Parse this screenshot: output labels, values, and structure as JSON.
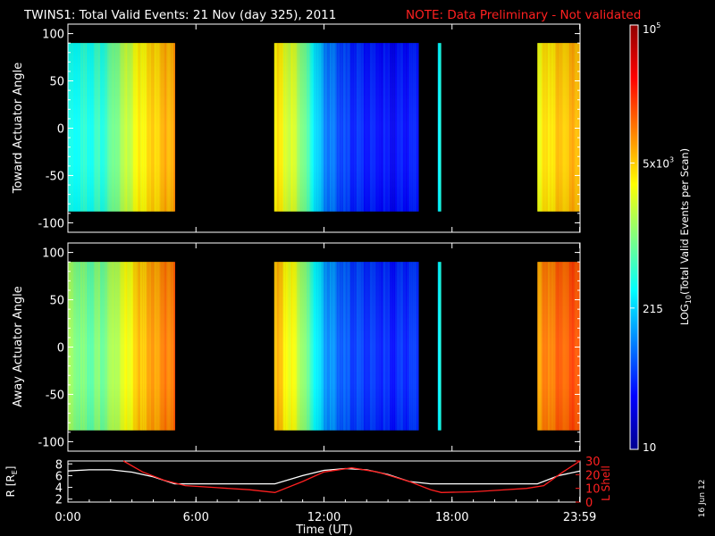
{
  "header": {
    "title": "TWINS1: Total Valid Events: 21 Nov (day 325), 2011",
    "note": "NOTE: Data Preliminary - Not validated",
    "note_color": "#ff2020"
  },
  "footer": {
    "plot_date": "16 Jun 12"
  },
  "chart_data": [
    {
      "type": "heatmap",
      "panel": "toward",
      "ylabel": "Toward Actuator Angle",
      "ylim": [
        -110,
        110
      ],
      "yticks": [
        100,
        50,
        0,
        -50,
        -100
      ],
      "xlim_hours": [
        0,
        24
      ],
      "data_angle_range": [
        -88,
        90
      ],
      "data_intervals": [
        {
          "start": "00:00",
          "end": "05:00",
          "log10_events": [
            2.5,
            2.6,
            2.7,
            3.1,
            3.5,
            3.7,
            3.9
          ]
        },
        {
          "start": "09:40",
          "end": "16:25",
          "log10_events": [
            3.6,
            3.2,
            2.1,
            1.7,
            1.6,
            1.5,
            1.6
          ]
        },
        {
          "start": "17:20",
          "end": "17:28",
          "log10_events": [
            2.5
          ]
        },
        {
          "start": "22:00",
          "end": "23:59",
          "log10_events": [
            3.5,
            3.7,
            3.8
          ]
        }
      ]
    },
    {
      "type": "heatmap",
      "panel": "away",
      "ylabel": "Away Actuator Angle",
      "ylim": [
        -110,
        110
      ],
      "yticks": [
        100,
        50,
        0,
        -50,
        -100
      ],
      "xlim_hours": [
        0,
        24
      ],
      "data_angle_range": [
        -88,
        90
      ],
      "data_intervals": [
        {
          "start": "00:00",
          "end": "05:00",
          "log10_events": [
            3.1,
            2.9,
            3.0,
            3.3,
            3.7,
            3.9,
            4.1
          ]
        },
        {
          "start": "09:40",
          "end": "16:25",
          "log10_events": [
            3.8,
            3.3,
            2.2,
            1.8,
            1.7,
            1.6,
            1.7
          ]
        },
        {
          "start": "17:20",
          "end": "17:28",
          "log10_events": [
            2.5
          ]
        },
        {
          "start": "22:00",
          "end": "23:59",
          "log10_events": [
            3.9,
            4.1,
            4.2
          ]
        }
      ]
    },
    {
      "type": "line",
      "panel": "orbit",
      "ylabel": "R [R",
      "ylabel_sub": "E",
      "ylabel_end": "]",
      "ylim": [
        1.5,
        8.5
      ],
      "yticks": [
        2,
        4,
        6,
        8
      ],
      "y2label": "L Shell",
      "y2lim": [
        0,
        30
      ],
      "y2ticks": [
        0,
        10,
        20,
        30
      ],
      "y2_color": "#ff2020",
      "xlabel": "Time (UT)",
      "xticks": [
        "0:00",
        "6:00",
        "12:00",
        "18:00",
        "23:59"
      ],
      "xtick_hours": [
        0,
        6,
        12,
        18,
        23.983
      ],
      "series": [
        {
          "axis": "left",
          "color": "#ffffff",
          "x_hours": [
            0,
            1,
            2,
            3,
            4,
            5,
            6,
            7,
            8,
            9,
            9.7,
            11,
            12,
            13,
            14,
            15,
            16,
            17,
            17.5,
            19,
            20,
            21,
            22,
            23,
            24
          ],
          "y": [
            6.8,
            7.0,
            7.0,
            6.6,
            5.8,
            4.6,
            4.6,
            4.6,
            4.6,
            4.6,
            4.6,
            6.0,
            6.9,
            7.2,
            7.0,
            6.2,
            5.0,
            4.6,
            4.6,
            4.6,
            4.6,
            4.6,
            4.6,
            6.0,
            6.8
          ]
        },
        {
          "axis": "right",
          "color": "#ff2020",
          "x_hours": [
            2.6,
            3.5,
            4.5,
            5.5,
            7,
            8.5,
            9.7,
            11,
            12,
            13.3,
            14.5,
            16,
            17,
            17.5,
            19,
            20,
            21.5,
            22.3,
            23.2,
            24
          ],
          "y": [
            30,
            22,
            16,
            12,
            10.5,
            9,
            7,
            15,
            22,
            25,
            22,
            15,
            9,
            7,
            7.5,
            8.5,
            10,
            12,
            22,
            30
          ]
        }
      ]
    },
    {
      "type": "colorbar",
      "label_prefix": "LOG",
      "label_sub": "10",
      "label_suffix": "(Total Valid Events per Scan)",
      "range_log10": [
        1,
        5
      ],
      "ticks": [
        {
          "log10": 5,
          "base": "10",
          "exp": "5"
        },
        {
          "log10": 3.699,
          "base": "5x10",
          "exp": "3"
        },
        {
          "log10": 2.332,
          "base": "215",
          "exp": ""
        },
        {
          "log10": 1,
          "base": "10",
          "exp": ""
        }
      ]
    }
  ]
}
